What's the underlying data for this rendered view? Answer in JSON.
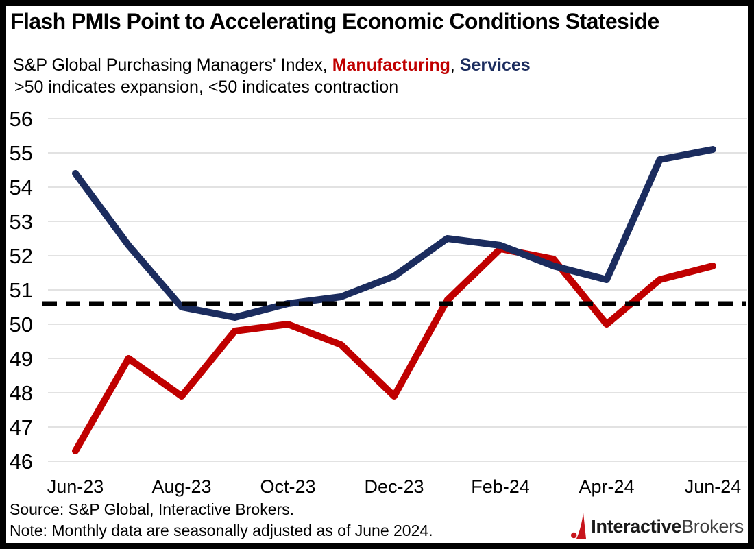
{
  "header": {
    "title": "Flash PMIs Point to Accelerating Economic Conditions Stateside",
    "subtitle": {
      "prefix": "S&P Global Purchasing Managers' Index, ",
      "series1": "Manufacturing",
      "separator": ", ",
      "series2": "Services"
    },
    "condition_note": ">50 indicates expansion, <50 indicates contraction"
  },
  "chart_data": {
    "type": "line",
    "categories": [
      "Jun-23",
      "Jul-23",
      "Aug-23",
      "Sep-23",
      "Oct-23",
      "Nov-23",
      "Dec-23",
      "Jan-24",
      "Feb-24",
      "Mar-24",
      "Apr-24",
      "May-24",
      "Jun-24"
    ],
    "x_tick_labels": [
      "Jun-23",
      "Aug-23",
      "Oct-23",
      "Dec-23",
      "Feb-24",
      "Apr-24",
      "Jun-24"
    ],
    "series": [
      {
        "name": "Manufacturing",
        "color": "#C00000",
        "values": [
          46.3,
          49.0,
          47.9,
          49.8,
          50.0,
          49.4,
          47.9,
          50.7,
          52.2,
          51.9,
          50.0,
          51.3,
          51.7
        ]
      },
      {
        "name": "Services",
        "color": "#1B2C5E",
        "values": [
          54.4,
          52.3,
          50.5,
          50.2,
          50.6,
          50.8,
          51.4,
          52.5,
          52.3,
          51.7,
          51.3,
          54.8,
          55.1
        ]
      }
    ],
    "ylim": [
      46,
      56
    ],
    "yticks": [
      56,
      55,
      54,
      53,
      52,
      51,
      50,
      49,
      48,
      47,
      46
    ],
    "grid": "horizontal",
    "gridline_color": "#D9D9D9",
    "reference_line": {
      "value": 50.6,
      "style": "dashed",
      "color": "#000000"
    },
    "legend_position": "in-subtitle",
    "xlabel": "",
    "ylabel": ""
  },
  "footer": {
    "source": "Source: S&P Global, Interactive Brokers.",
    "note": "Note: Monthly data are seasonally adjusted as of June 2024.",
    "logo": {
      "text_bold": "Interactive",
      "text_regular": "Brokers",
      "icon_color": "#C8151C"
    }
  }
}
